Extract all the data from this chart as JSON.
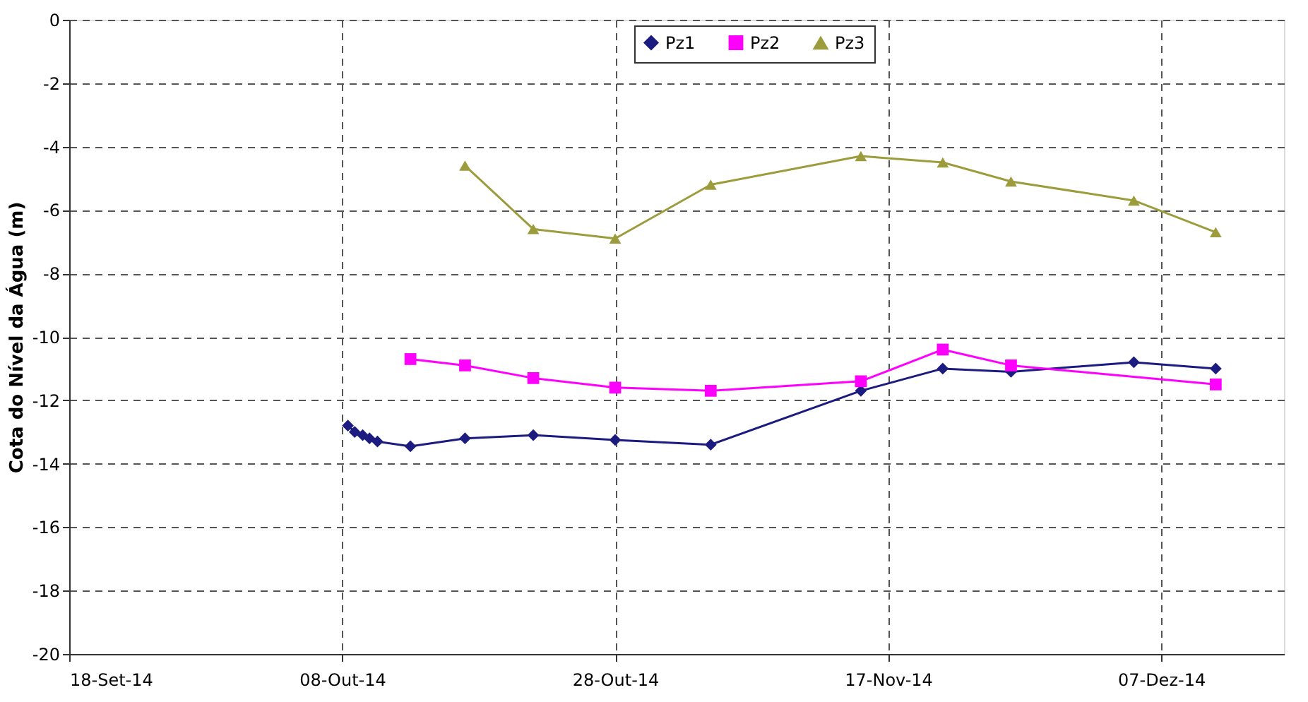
{
  "chart_data": {
    "type": "line",
    "ylabel": "Cota do Nível da Água (m)",
    "xlim": [
      "2014-09-18",
      "2014-12-16"
    ],
    "xticks": [
      {
        "value": "2014-09-18",
        "label": "18-Set-14"
      },
      {
        "value": "2014-10-08",
        "label": "08-Out-14"
      },
      {
        "value": "2014-10-28",
        "label": "28-Out-14"
      },
      {
        "value": "2014-11-17",
        "label": "17-Nov-14"
      },
      {
        "value": "2014-12-07",
        "label": "07-Dez-14"
      }
    ],
    "ylim": [
      -20,
      0
    ],
    "yticks": [
      -20,
      -18,
      -16,
      -14,
      -12,
      -10,
      -8,
      -6,
      -4,
      -2,
      0
    ],
    "grid": true,
    "legend": "top",
    "line_style": "solid",
    "series": [
      {
        "name": "Pz1",
        "color": "#1c1c80",
        "marker": "diamond",
        "x": [
          "2014-10-08T10:00",
          "2014-10-08T22:00",
          "2014-10-09T12:00",
          "2014-10-10T00:00",
          "2014-10-10T14:00",
          "2014-10-13",
          "2014-10-17",
          "2014-10-22",
          "2014-10-28",
          "2014-11-04",
          "2014-11-15",
          "2014-11-21",
          "2014-11-26",
          "2014-12-05",
          "2014-12-11"
        ],
        "values": [
          -12.8,
          -13.0,
          -13.1,
          -13.2,
          -13.3,
          -13.45,
          -13.2,
          -13.1,
          -13.25,
          -13.4,
          -11.7,
          -11.0,
          -11.1,
          -10.8,
          -11.0
        ]
      },
      {
        "name": "Pz2",
        "color": "#ff00ff",
        "marker": "square",
        "x": [
          "2014-10-13",
          "2014-10-17",
          "2014-10-22",
          "2014-10-28",
          "2014-11-04",
          "2014-11-15",
          "2014-11-21",
          "2014-11-26",
          "2014-12-11"
        ],
        "values": [
          -10.7,
          -10.9,
          -11.3,
          -11.6,
          -11.7,
          -11.4,
          -10.4,
          -10.9,
          -11.5
        ]
      },
      {
        "name": "Pz3",
        "color": "#9c9c3c",
        "marker": "triangle",
        "x": [
          "2014-10-17",
          "2014-10-22",
          "2014-10-28",
          "2014-11-04",
          "2014-11-15",
          "2014-11-21",
          "2014-11-26",
          "2014-12-05",
          "2014-12-11"
        ],
        "values": [
          -4.6,
          -6.6,
          -6.9,
          -5.2,
          -4.3,
          -4.5,
          -5.1,
          -5.7,
          -6.7
        ]
      }
    ]
  }
}
